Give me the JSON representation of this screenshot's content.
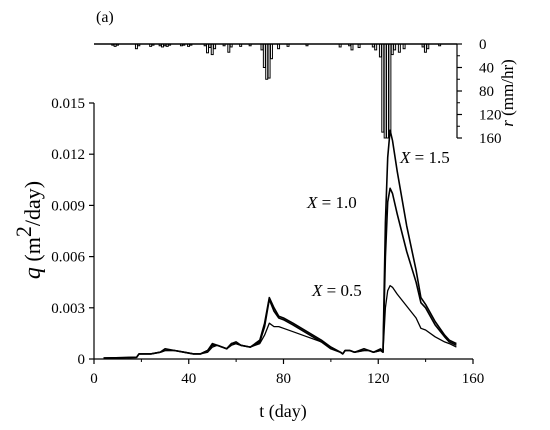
{
  "chart_data": {
    "type": "line",
    "panel_label": "(a)",
    "xlabel": "t (day)",
    "ylabel": {
      "symbol": "q",
      "unit_pre": " (m",
      "unit_sup": "2",
      "unit_post": "/day)"
    },
    "xlim": [
      0,
      160
    ],
    "ylim": [
      0,
      0.015
    ],
    "xticks": [
      0,
      40,
      80,
      120,
      160
    ],
    "yticks": [
      0,
      0.003,
      0.006,
      0.009,
      0.012,
      0.015
    ],
    "ytick_labels": [
      "0",
      "0.003",
      "0.006",
      "0.009",
      "0.012",
      "0.015"
    ],
    "series": [
      {
        "name": "X = 0.5",
        "x": [
          4,
          18,
          19,
          24,
          28,
          30,
          34,
          38,
          42,
          45,
          48,
          50,
          52,
          56,
          58,
          60,
          62,
          66,
          70,
          72,
          74,
          76,
          78,
          80,
          84,
          90,
          96,
          100,
          104,
          105,
          106,
          108,
          110,
          114,
          116,
          118,
          121,
          122,
          123,
          124,
          125,
          126,
          128,
          132,
          136,
          138,
          140,
          144,
          148,
          150,
          153
        ],
        "y": [
          5e-05,
          0.0001,
          0.0003,
          0.0003,
          0.0004,
          0.0005,
          0.0005,
          0.0004,
          0.0003,
          0.0003,
          0.0004,
          0.0007,
          0.0008,
          0.0006,
          0.0008,
          0.0009,
          0.0008,
          0.0007,
          0.0009,
          0.0014,
          0.0021,
          0.0019,
          0.0019,
          0.0018,
          0.0016,
          0.0013,
          0.001,
          0.0007,
          0.0004,
          0.0003,
          0.0005,
          0.0005,
          0.0004,
          0.0005,
          0.0005,
          0.0004,
          0.0005,
          0.0004,
          0.003,
          0.004,
          0.0043,
          0.0042,
          0.0038,
          0.0031,
          0.0024,
          0.0018,
          0.0017,
          0.0013,
          0.001,
          0.0009,
          0.0007
        ]
      },
      {
        "name": "X = 1.0",
        "x": [
          4,
          18,
          19,
          24,
          28,
          30,
          34,
          38,
          42,
          45,
          48,
          50,
          52,
          56,
          58,
          60,
          62,
          66,
          70,
          72,
          74,
          76,
          78,
          80,
          84,
          90,
          96,
          100,
          104,
          105,
          106,
          108,
          110,
          114,
          116,
          118,
          121,
          122,
          123,
          124,
          125,
          126,
          128,
          132,
          136,
          138,
          140,
          144,
          148,
          150,
          153
        ],
        "y": [
          5e-05,
          0.0001,
          0.0003,
          0.0003,
          0.0004,
          0.0005,
          0.0005,
          0.0004,
          0.0003,
          0.0003,
          0.0005,
          0.0008,
          0.0008,
          0.0006,
          0.0009,
          0.0009,
          0.0008,
          0.0007,
          0.001,
          0.0019,
          0.0035,
          0.0028,
          0.0024,
          0.0023,
          0.002,
          0.0015,
          0.001,
          0.0006,
          0.0004,
          0.0003,
          0.0005,
          0.0005,
          0.0004,
          0.0005,
          0.0005,
          0.0004,
          0.0005,
          0.0004,
          0.006,
          0.0092,
          0.01,
          0.0097,
          0.0085,
          0.0063,
          0.0045,
          0.0033,
          0.003,
          0.002,
          0.0013,
          0.001,
          0.0008
        ]
      },
      {
        "name": "X = 1.5",
        "x": [
          4,
          18,
          19,
          24,
          28,
          30,
          34,
          38,
          42,
          45,
          48,
          50,
          52,
          56,
          58,
          60,
          62,
          66,
          70,
          72,
          74,
          76,
          78,
          80,
          84,
          90,
          96,
          100,
          104,
          105,
          106,
          108,
          110,
          114,
          116,
          118,
          121,
          122,
          123,
          124,
          125,
          126,
          128,
          132,
          136,
          138,
          140,
          144,
          148,
          150,
          153
        ],
        "y": [
          5e-05,
          0.0001,
          0.0003,
          0.0003,
          0.0004,
          0.0006,
          0.0005,
          0.0004,
          0.0003,
          0.0003,
          0.0005,
          0.0009,
          0.0008,
          0.0006,
          0.0009,
          0.001,
          0.0008,
          0.0007,
          0.0011,
          0.0021,
          0.0036,
          0.003,
          0.0025,
          0.0024,
          0.0021,
          0.0016,
          0.0011,
          0.0007,
          0.0004,
          0.0003,
          0.0005,
          0.0005,
          0.0004,
          0.0006,
          0.0005,
          0.0004,
          0.0006,
          0.0004,
          0.008,
          0.0118,
          0.0134,
          0.0128,
          0.011,
          0.0078,
          0.0052,
          0.0036,
          0.0032,
          0.0022,
          0.0014,
          0.0011,
          0.0009
        ]
      }
    ],
    "annotations": [
      {
        "var": "X",
        "text": " = 1.5"
      },
      {
        "var": "X",
        "text": " = 1.0"
      },
      {
        "var": "X",
        "text": " = 0.5"
      }
    ],
    "rainfall": {
      "ylabel": {
        "symbol": "r",
        "unit": " (mm/hr)"
      },
      "ylim": [
        0,
        160
      ],
      "yticks": [
        0,
        40,
        80,
        120,
        160
      ],
      "ytick_labels": [
        "0",
        "40",
        "80",
        "120",
        "160"
      ],
      "orientation": "inverted",
      "days": [
        8,
        9,
        10,
        18,
        19,
        24,
        25,
        28,
        29,
        30,
        31,
        32,
        37,
        38,
        40,
        41,
        47,
        48,
        49,
        50,
        51,
        55,
        57,
        58,
        62,
        66,
        71,
        72,
        73,
        74,
        75,
        78,
        82,
        90,
        104,
        108,
        109,
        112,
        118,
        119,
        121,
        122,
        123,
        124,
        125,
        126,
        127,
        129,
        131,
        139,
        140,
        141,
        146
      ],
      "values": [
        2,
        4,
        2,
        8,
        3,
        4,
        2,
        3,
        5,
        3,
        4,
        2,
        3,
        2,
        4,
        2,
        3,
        15,
        6,
        18,
        8,
        3,
        14,
        5,
        4,
        3,
        10,
        40,
        60,
        58,
        25,
        8,
        4,
        3,
        5,
        3,
        10,
        6,
        5,
        10,
        22,
        150,
        160,
        160,
        150,
        18,
        10,
        14,
        8,
        5,
        14,
        8,
        3
      ]
    }
  }
}
